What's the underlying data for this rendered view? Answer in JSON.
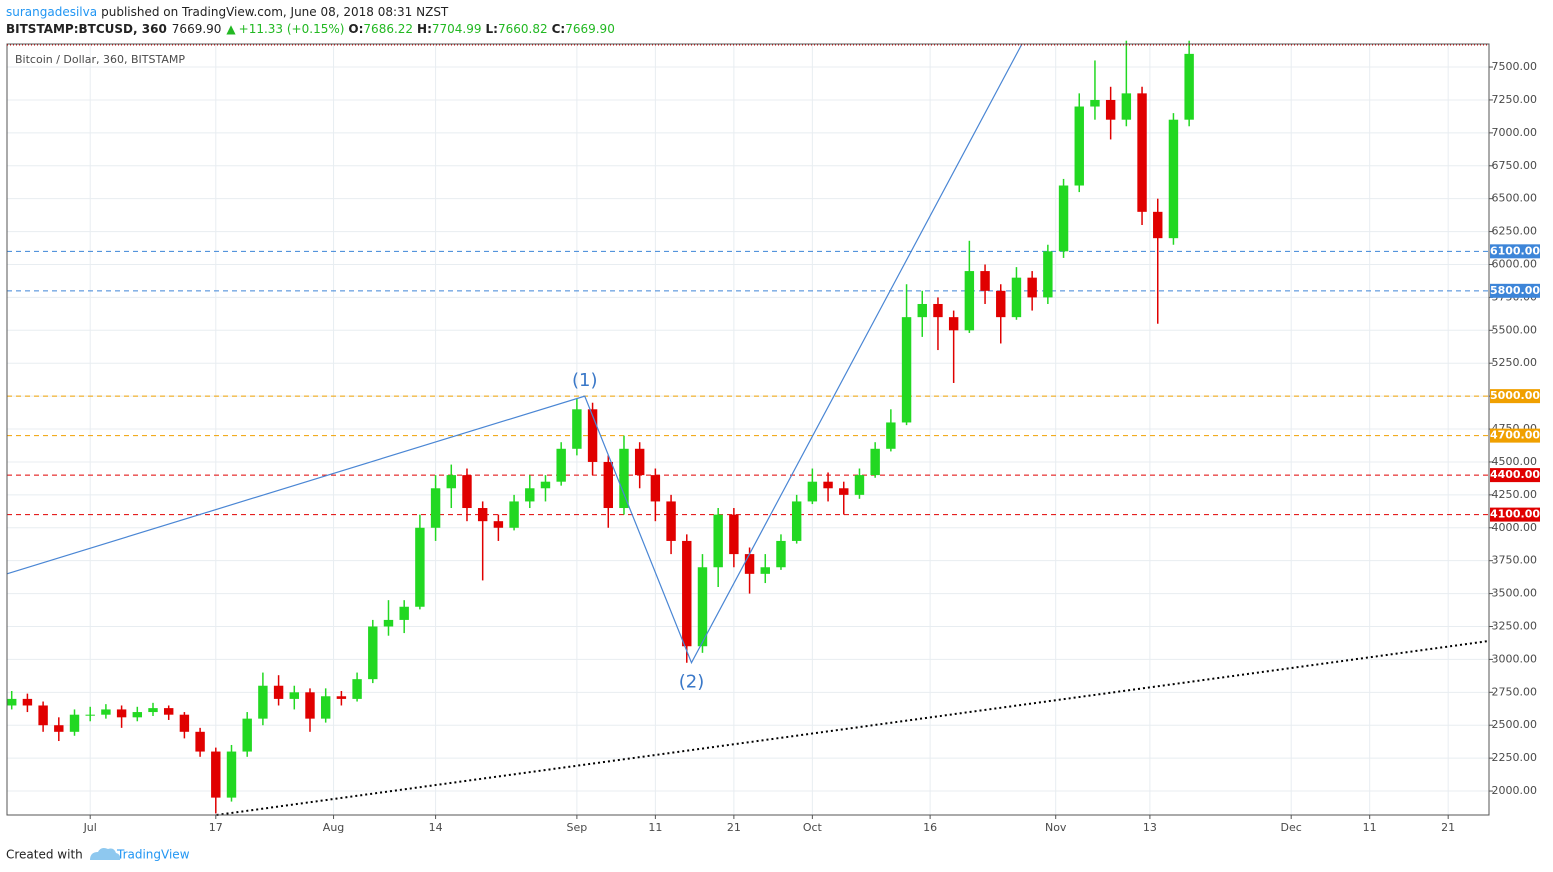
{
  "header": {
    "user": "surangadesilva",
    "published": "published on TradingView.com, June 08, 2018 08:31 NZST",
    "symbol": "BITSTAMP:BTCUSD, 360",
    "last": "7669.90",
    "arrow": "▲",
    "change": "+11.33 (+0.15%)",
    "ohlc_labels": [
      "O:",
      "H:",
      "L:",
      "C:"
    ],
    "ohlc_values": [
      "7686.22",
      "7704.99",
      "7660.82",
      "7669.90"
    ]
  },
  "footer": {
    "created": "Created with",
    "brand": "TradingView"
  },
  "chart_data": {
    "type": "candlestick",
    "title": "Bitcoin / Dollar, 360, BITSTAMP",
    "up_color": "#22d822",
    "down_color": "#e00000",
    "grid": true,
    "xlim": [
      171.4,
      360.2
    ],
    "ylim": [
      1818,
      7675
    ],
    "xticks": [
      {
        "value": 182,
        "label": "Jul"
      },
      {
        "value": 198,
        "label": "17"
      },
      {
        "value": 213,
        "label": "Aug"
      },
      {
        "value": 226,
        "label": "14"
      },
      {
        "value": 244,
        "label": "Sep"
      },
      {
        "value": 254,
        "label": "11"
      },
      {
        "value": 264,
        "label": "21"
      },
      {
        "value": 274,
        "label": "Oct"
      },
      {
        "value": 289,
        "label": "16"
      },
      {
        "value": 305,
        "label": "Nov"
      },
      {
        "value": 317,
        "label": "13"
      },
      {
        "value": 335,
        "label": "Dec"
      },
      {
        "value": 345,
        "label": "11"
      },
      {
        "value": 355,
        "label": "21"
      }
    ],
    "yticks": [
      {
        "value": 2000,
        "label": "2000.00"
      },
      {
        "value": 2250,
        "label": "2250.00"
      },
      {
        "value": 2500,
        "label": "2500.00"
      },
      {
        "value": 2750,
        "label": "2750.00"
      },
      {
        "value": 3000,
        "label": "3000.00"
      },
      {
        "value": 3250,
        "label": "3250.00"
      },
      {
        "value": 3500,
        "label": "3500.00"
      },
      {
        "value": 3750,
        "label": "3750.00"
      },
      {
        "value": 4000,
        "label": "4000.00"
      },
      {
        "value": 4250,
        "label": "4250.00"
      },
      {
        "value": 4500,
        "label": "4500.00"
      },
      {
        "value": 4750,
        "label": "4750.00"
      },
      {
        "value": 5000,
        "label": "5000.00"
      },
      {
        "value": 5250,
        "label": "5250.00"
      },
      {
        "value": 5500,
        "label": "5500.00"
      },
      {
        "value": 5750,
        "label": "5750.00"
      },
      {
        "value": 6000,
        "label": "6000.00"
      },
      {
        "value": 6250,
        "label": "6250.00"
      },
      {
        "value": 6500,
        "label": "6500.00"
      },
      {
        "value": 6750,
        "label": "6750.00"
      },
      {
        "value": 7000,
        "label": "7000.00"
      },
      {
        "value": 7250,
        "label": "7250.00"
      },
      {
        "value": 7500,
        "label": "7500.00"
      }
    ],
    "levels": [
      {
        "value": 6100,
        "label": "6100.00",
        "color": "#3d85d8"
      },
      {
        "value": 5800,
        "label": "5800.00",
        "color": "#3d85d8"
      },
      {
        "value": 5000,
        "label": "5000.00",
        "color": "#f0a000"
      },
      {
        "value": 4700,
        "label": "4700.00",
        "color": "#f0a000"
      },
      {
        "value": 4400,
        "label": "4400.00",
        "color": "#e00000"
      },
      {
        "value": 4100,
        "label": "4100.00",
        "color": "#e00000"
      }
    ],
    "lines": [
      {
        "style": "solid",
        "color": "#4a86d4",
        "points": [
          [
            171.4,
            3650
          ],
          [
            245,
            5000
          ],
          [
            258.6,
            2975
          ],
          [
            300.7,
            7675
          ]
        ]
      },
      {
        "style": "dotted",
        "color": "#000000",
        "points": [
          [
            198.1,
            1818
          ],
          [
            360.2,
            3140
          ]
        ]
      }
    ],
    "annotations": [
      {
        "text": "(1)",
        "x": 245,
        "y": 5000,
        "pos": "above"
      },
      {
        "text": "(2)",
        "x": 258.6,
        "y": 2975,
        "pos": "below"
      }
    ],
    "x": [
      172,
      174,
      176,
      178,
      180,
      182,
      184,
      186,
      188,
      190,
      192,
      194,
      196,
      198,
      200,
      202,
      204,
      206,
      208,
      210,
      212,
      214,
      216,
      218,
      220,
      222,
      224,
      226,
      228,
      230,
      232,
      234,
      236,
      238,
      240,
      242,
      244,
      246,
      248,
      250,
      252,
      254,
      256,
      258,
      260,
      262,
      264,
      266,
      268,
      270,
      272,
      274,
      276,
      278,
      280,
      282,
      284,
      286,
      288,
      290,
      292,
      294,
      296,
      298,
      300,
      302,
      304,
      306,
      308,
      310,
      312,
      314,
      316,
      318,
      320,
      322
    ],
    "ohlc": [
      [
        2650,
        2760,
        2620,
        2700
      ],
      [
        2700,
        2740,
        2600,
        2650
      ],
      [
        2650,
        2680,
        2450,
        2500
      ],
      [
        2500,
        2560,
        2380,
        2450
      ],
      [
        2450,
        2620,
        2420,
        2580
      ],
      [
        2580,
        2640,
        2530,
        2580
      ],
      [
        2580,
        2660,
        2550,
        2620
      ],
      [
        2620,
        2650,
        2480,
        2560
      ],
      [
        2560,
        2640,
        2530,
        2600
      ],
      [
        2600,
        2670,
        2570,
        2630
      ],
      [
        2630,
        2650,
        2540,
        2580
      ],
      [
        2580,
        2600,
        2400,
        2450
      ],
      [
        2450,
        2480,
        2260,
        2300
      ],
      [
        2300,
        2330,
        1830,
        1950
      ],
      [
        1950,
        2350,
        1920,
        2300
      ],
      [
        2300,
        2600,
        2260,
        2550
      ],
      [
        2550,
        2900,
        2500,
        2800
      ],
      [
        2800,
        2880,
        2650,
        2700
      ],
      [
        2700,
        2800,
        2620,
        2750
      ],
      [
        2750,
        2780,
        2450,
        2550
      ],
      [
        2550,
        2780,
        2520,
        2720
      ],
      [
        2720,
        2760,
        2650,
        2700
      ],
      [
        2700,
        2900,
        2680,
        2850
      ],
      [
        2850,
        3300,
        2820,
        3250
      ],
      [
        3250,
        3450,
        3180,
        3300
      ],
      [
        3300,
        3450,
        3200,
        3400
      ],
      [
        3400,
        4100,
        3380,
        4000
      ],
      [
        4000,
        4400,
        3900,
        4300
      ],
      [
        4300,
        4480,
        4150,
        4400
      ],
      [
        4400,
        4450,
        4050,
        4150
      ],
      [
        4150,
        4200,
        3600,
        4050
      ],
      [
        4050,
        4100,
        3900,
        4000
      ],
      [
        4000,
        4250,
        3980,
        4200
      ],
      [
        4200,
        4400,
        4150,
        4300
      ],
      [
        4300,
        4400,
        4200,
        4350
      ],
      [
        4350,
        4650,
        4320,
        4600
      ],
      [
        4600,
        4980,
        4550,
        4900
      ],
      [
        4900,
        4950,
        4400,
        4500
      ],
      [
        4500,
        4550,
        4000,
        4150
      ],
      [
        4150,
        4700,
        4100,
        4600
      ],
      [
        4600,
        4650,
        4300,
        4400
      ],
      [
        4400,
        4450,
        4050,
        4200
      ],
      [
        4200,
        4250,
        3800,
        3900
      ],
      [
        3900,
        3950,
        2975,
        3100
      ],
      [
        3100,
        3800,
        3050,
        3700
      ],
      [
        3700,
        4150,
        3550,
        4100
      ],
      [
        4100,
        4150,
        3700,
        3800
      ],
      [
        3800,
        3850,
        3500,
        3650
      ],
      [
        3650,
        3800,
        3580,
        3700
      ],
      [
        3700,
        3950,
        3680,
        3900
      ],
      [
        3900,
        4250,
        3880,
        4200
      ],
      [
        4200,
        4450,
        4180,
        4350
      ],
      [
        4350,
        4420,
        4200,
        4300
      ],
      [
        4300,
        4350,
        4100,
        4250
      ],
      [
        4250,
        4450,
        4220,
        4400
      ],
      [
        4400,
        4650,
        4380,
        4600
      ],
      [
        4600,
        4900,
        4580,
        4800
      ],
      [
        4800,
        5850,
        4780,
        5600
      ],
      [
        5600,
        5800,
        5450,
        5700
      ],
      [
        5700,
        5750,
        5350,
        5600
      ],
      [
        5600,
        5650,
        5100,
        5500
      ],
      [
        5500,
        6180,
        5480,
        5950
      ],
      [
        5950,
        6000,
        5700,
        5800
      ],
      [
        5800,
        5850,
        5400,
        5600
      ],
      [
        5600,
        5980,
        5580,
        5900
      ],
      [
        5900,
        5950,
        5650,
        5750
      ],
      [
        5750,
        6150,
        5700,
        6100
      ],
      [
        6100,
        6650,
        6050,
        6600
      ],
      [
        6600,
        7300,
        6550,
        7200
      ],
      [
        7200,
        7550,
        7100,
        7250
      ],
      [
        7250,
        7350,
        6950,
        7100
      ],
      [
        7100,
        7700,
        7050,
        7300
      ],
      [
        7300,
        7350,
        6300,
        6400
      ],
      [
        6400,
        6500,
        5550,
        6200
      ],
      [
        6200,
        7150,
        6150,
        7100
      ],
      [
        7100,
        7700,
        7050,
        7600
      ]
    ]
  }
}
